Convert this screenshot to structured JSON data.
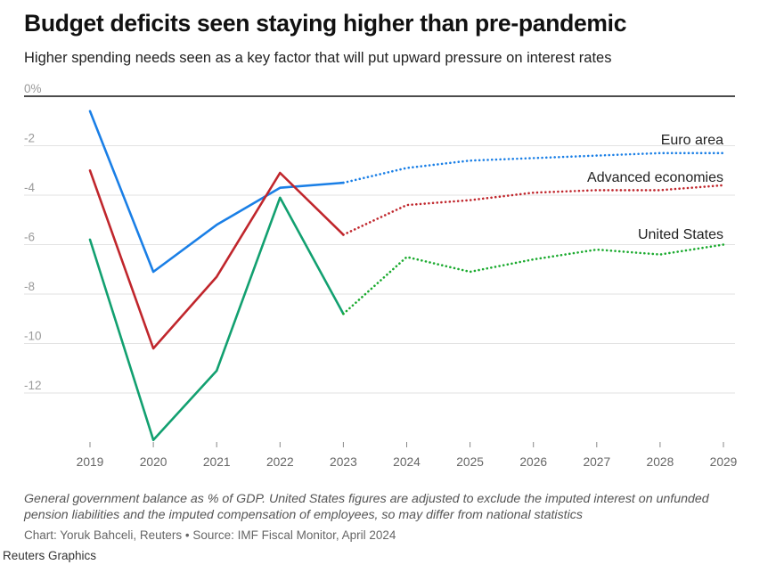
{
  "header": {
    "title": "Budget deficits seen staying higher than pre-pandemic",
    "subtitle": "Higher spending needs seen as a key factor that will put upward pressure on interest rates"
  },
  "footer": {
    "note": "General government balance as % of GDP. United States figures are adjusted to exclude the imputed interest on unfunded pension liabilities and the imputed compensation of employees, so may differ from national statistics",
    "credit": "Chart: Yoruk Bahceli, Reuters • Source: IMF Fiscal Monitor, April 2024",
    "brand": "Reuters Graphics"
  },
  "chart_data": {
    "type": "line",
    "title": "Budget deficits seen staying higher than pre-pandemic",
    "subtitle": "Higher spending needs seen as a key factor that will put upward pressure on interest rates",
    "xlabel": "",
    "ylabel": "",
    "x": [
      2019,
      2020,
      2021,
      2022,
      2023,
      2024,
      2025,
      2026,
      2027,
      2028,
      2029
    ],
    "x_labels": [
      "2019",
      "2020",
      "2021",
      "2022",
      "2023",
      "2024",
      "2025",
      "2026",
      "2027",
      "2028",
      "2029"
    ],
    "y_ticks": [
      0,
      -2,
      -4,
      -6,
      -8,
      -10,
      -12
    ],
    "y_tick_labels": [
      "0%",
      "-2",
      "-4",
      "-6",
      "-8",
      "-10",
      "-12"
    ],
    "ylim": [
      -14,
      0
    ],
    "projection_start": 2023,
    "series": [
      {
        "name": "Euro area",
        "color": "#1a7fe6",
        "values": [
          -0.6,
          -7.1,
          -5.2,
          -3.7,
          -3.5,
          -2.9,
          -2.6,
          -2.5,
          -2.4,
          -2.3,
          -2.3
        ]
      },
      {
        "name": "Advanced economies",
        "color": "#c0262c",
        "values": [
          -3.0,
          -10.2,
          -7.3,
          -3.1,
          -5.6,
          -4.4,
          -4.2,
          -3.9,
          -3.8,
          -3.8,
          -3.6
        ]
      },
      {
        "name": "United States",
        "color": "#12a070",
        "projection_color": "#1aaa2e",
        "values": [
          -5.8,
          -13.9,
          -11.1,
          -4.1,
          -8.8,
          -6.5,
          -7.1,
          -6.6,
          -6.2,
          -6.4,
          -6.0
        ]
      }
    ]
  }
}
